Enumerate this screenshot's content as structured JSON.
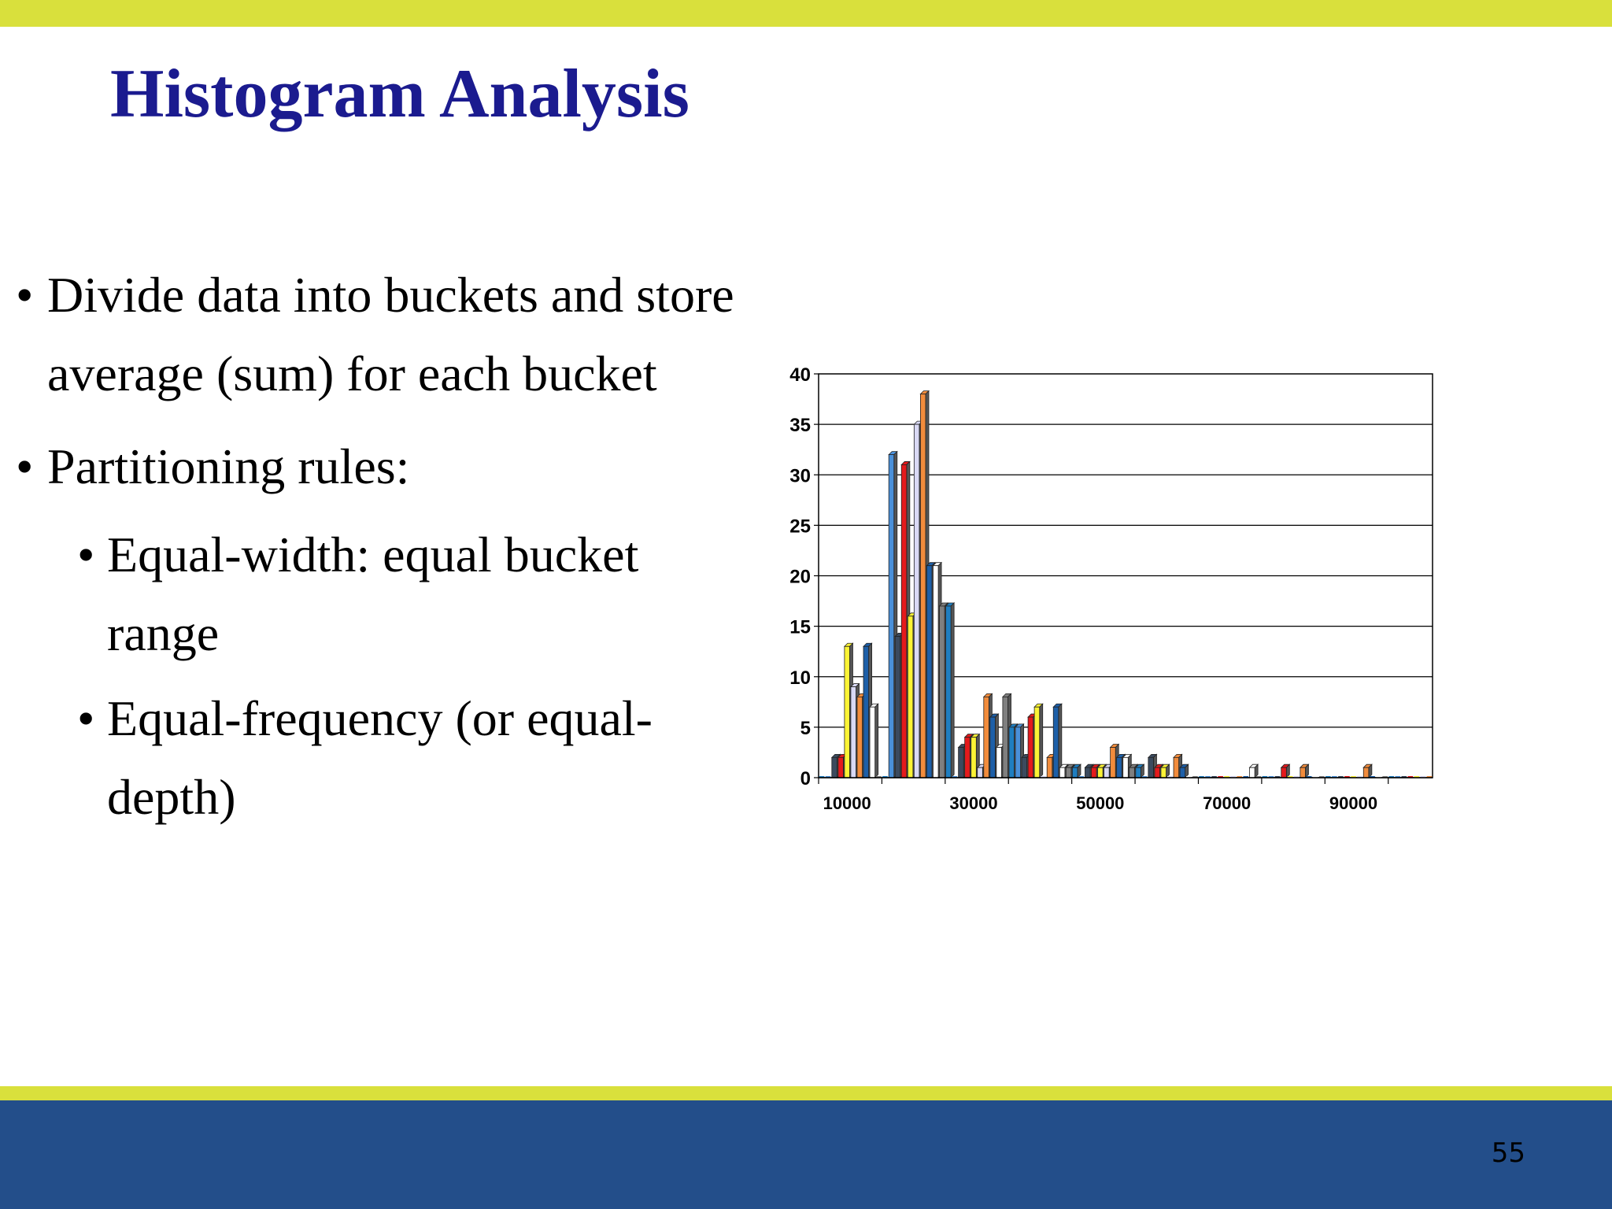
{
  "slide": {
    "title": "Histogram Analysis",
    "bullets": [
      {
        "text_lines": [
          "Divide data into buckets and store",
          "average (sum) for each bucket"
        ],
        "level": 1
      },
      {
        "text_lines": [
          "Partitioning rules:"
        ],
        "level": 1
      },
      {
        "text_lines": [
          "Equal-width: equal bucket",
          "range"
        ],
        "level": 2
      },
      {
        "text_lines": [
          "Equal-frequency (or equal-",
          "depth)"
        ],
        "level": 2
      }
    ],
    "bullet_glyph": "•",
    "page_number": "55"
  },
  "colors": {
    "title": "#1b1b8f",
    "accent_stripe": "#d9e03c",
    "footer": "#234e8a"
  },
  "chart_data": {
    "type": "bar",
    "title": "",
    "xlabel": "",
    "ylabel": "",
    "ylim": [
      0,
      40
    ],
    "yticks": [
      "0",
      "5",
      "10",
      "15",
      "20",
      "25",
      "30",
      "35",
      "40"
    ],
    "xticks": [
      "10000",
      "30000",
      "50000",
      "70000",
      "90000"
    ],
    "grid": true,
    "legend": "none",
    "bar_colors": [
      "#1f7ec0",
      "#4a90d9",
      "#3b4a5e",
      "#e41a1c",
      "#fbf335",
      "#d9d9f5",
      "#f28c3c",
      "#1d5fa8",
      "#ffffff",
      "#7f7f7f"
    ],
    "values": [
      0,
      0,
      2,
      2,
      13,
      9,
      8,
      13,
      7,
      0,
      0,
      32,
      14,
      31,
      16,
      35,
      38,
      21,
      21,
      17,
      17,
      0,
      3,
      4,
      4,
      1,
      8,
      6,
      3,
      8,
      5,
      5,
      2,
      6,
      7,
      0,
      2,
      7,
      1,
      1,
      1,
      0,
      1,
      1,
      1,
      1,
      3,
      2,
      2,
      1,
      1,
      0,
      2,
      1,
      1,
      0,
      2,
      1,
      0,
      0,
      0,
      0,
      0,
      0,
      0,
      0,
      0,
      0,
      1,
      0,
      0,
      0,
      0,
      1,
      0,
      0,
      1,
      0,
      0,
      0,
      0,
      0,
      0,
      0,
      0,
      0,
      1,
      0,
      0,
      0,
      0,
      0,
      0,
      0,
      0,
      0,
      0
    ]
  }
}
